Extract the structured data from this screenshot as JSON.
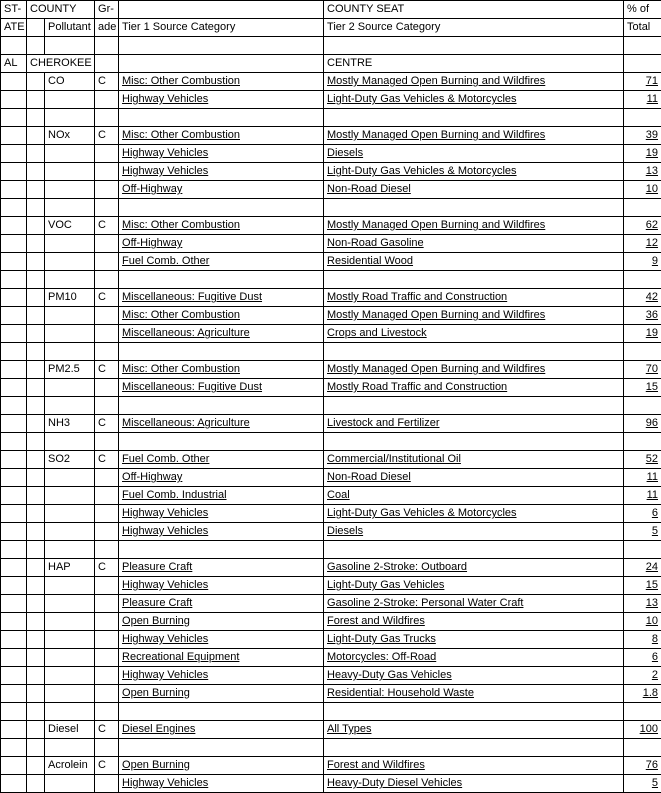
{
  "headers": {
    "state1": "ST-",
    "state2": "ATE",
    "county": "COUNTY",
    "pollutant": "Pollutant",
    "grade1": "Gr-",
    "grade2": "ade",
    "tier1": "Tier 1 Source Category",
    "county_seat": "COUNTY SEAT",
    "tier2": "Tier 2 Source Category",
    "pct1": "% of",
    "pct2": "Total"
  },
  "state": "AL",
  "county": "CHEROKEE",
  "county_seat": "CENTRE",
  "groups": [
    {
      "pollutant": "CO",
      "grade": "C",
      "rows": [
        {
          "tier1": "Misc: Other Combustion",
          "tier2": "Mostly Managed Open Burning and Wildfires",
          "pct": "71"
        },
        {
          "tier1": "Highway Vehicles",
          "tier2": "Light-Duty Gas Vehicles & Motorcycles",
          "pct": "11"
        }
      ]
    },
    {
      "pollutant": "NOx",
      "grade": "C",
      "rows": [
        {
          "tier1": "Misc: Other Combustion",
          "tier2": "Mostly Managed Open Burning and Wildfires",
          "pct": "39"
        },
        {
          "tier1": "Highway Vehicles",
          "tier2": "Diesels",
          "pct": "19"
        },
        {
          "tier1": "Highway Vehicles",
          "tier2": "Light-Duty Gas Vehicles & Motorcycles",
          "pct": "13"
        },
        {
          "tier1": "Off-Highway",
          "tier2": "Non-Road Diesel",
          "pct": "10"
        }
      ]
    },
    {
      "pollutant": "VOC",
      "grade": "C",
      "rows": [
        {
          "tier1": "Misc: Other Combustion",
          "tier2": "Mostly Managed Open Burning and Wildfires",
          "pct": "62"
        },
        {
          "tier1": "Off-Highway",
          "tier2": "Non-Road Gasoline",
          "pct": "12"
        },
        {
          "tier1": "Fuel Comb. Other",
          "tier2": "Residential Wood",
          "pct": "9"
        }
      ]
    },
    {
      "pollutant": "PM10",
      "grade": "C",
      "rows": [
        {
          "tier1": "Miscellaneous: Fugitive Dust",
          "tier2": "Mostly Road Traffic and Construction",
          "pct": "42"
        },
        {
          "tier1": "Misc: Other Combustion",
          "tier2": "Mostly Managed Open Burning and Wildfires",
          "pct": "36"
        },
        {
          "tier1": "Miscellaneous: Agriculture",
          "tier2": "Crops and Livestock",
          "pct": "19"
        }
      ]
    },
    {
      "pollutant": "PM2.5",
      "grade": "C",
      "rows": [
        {
          "tier1": "Misc: Other Combustion",
          "tier2": "Mostly Managed Open Burning and Wildfires",
          "pct": "70"
        },
        {
          "tier1": "Miscellaneous: Fugitive Dust",
          "tier2": "Mostly Road Traffic and Construction",
          "pct": "15"
        }
      ]
    },
    {
      "pollutant": "NH3",
      "grade": "C",
      "rows": [
        {
          "tier1": "Miscellaneous: Agriculture",
          "tier2": "Livestock and Fertilizer",
          "pct": "96"
        }
      ]
    },
    {
      "pollutant": "SO2",
      "grade": "C",
      "rows": [
        {
          "tier1": "Fuel Comb. Other",
          "tier2": "Commercial/Institutional Oil",
          "pct": "52"
        },
        {
          "tier1": "Off-Highway",
          "tier2": "Non-Road Diesel",
          "pct": "11"
        },
        {
          "tier1": "Fuel Comb. Industrial",
          "tier2": "Coal",
          "pct": "11"
        },
        {
          "tier1": "Highway Vehicles",
          "tier2": "Light-Duty Gas Vehicles & Motorcycles",
          "pct": "6"
        },
        {
          "tier1": "Highway Vehicles",
          "tier2": "Diesels",
          "pct": "5"
        }
      ]
    },
    {
      "pollutant": "HAP",
      "grade": "C",
      "rows": [
        {
          "tier1": "Pleasure Craft",
          "tier2": "Gasoline 2-Stroke: Outboard",
          "pct": "24"
        },
        {
          "tier1": "Highway Vehicles",
          "tier2": "Light-Duty Gas Vehicles",
          "pct": "15"
        },
        {
          "tier1": "Pleasure Craft",
          "tier2": "Gasoline 2-Stroke: Personal Water Craft",
          "pct": "13"
        },
        {
          "tier1": "Open Burning",
          "tier2": "Forest and Wildfires",
          "pct": "10"
        },
        {
          "tier1": "Highway Vehicles",
          "tier2": "Light-Duty Gas Trucks",
          "pct": "8"
        },
        {
          "tier1": "Recreational Equipment",
          "tier2": "Motorcycles: Off-Road",
          "pct": "6"
        },
        {
          "tier1": "Highway Vehicles",
          "tier2": "Heavy-Duty Gas Vehicles",
          "pct": "2"
        },
        {
          "tier1": "Open Burning",
          "tier2": "Residential: Household Waste",
          "pct": "1.8"
        }
      ]
    },
    {
      "pollutant": "Diesel",
      "grade": "C",
      "rows": [
        {
          "tier1": "Diesel Engines",
          "tier2": "All Types",
          "pct": "100"
        }
      ]
    },
    {
      "pollutant": "Acrolein",
      "grade": "C",
      "rows": [
        {
          "tier1": "Open Burning",
          "tier2": "Forest and Wildfires",
          "pct": "76"
        },
        {
          "tier1": "Highway Vehicles",
          "tier2": "Heavy-Duty Diesel Vehicles",
          "pct": "5"
        }
      ]
    }
  ]
}
